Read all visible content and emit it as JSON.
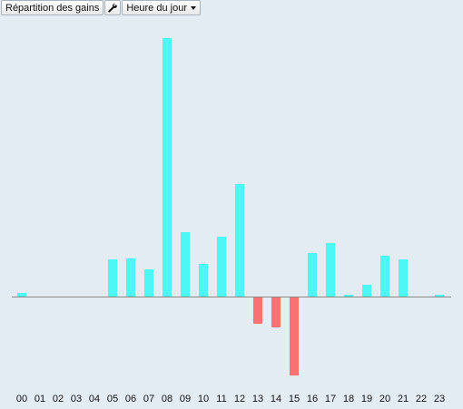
{
  "toolbar": {
    "title_label": "Répartition des gains",
    "tool_icon": "wrench-icon",
    "period_select": "Heure du jour"
  },
  "colors": {
    "positive": "#4ff6f6",
    "negative": "#f87272",
    "baseline": "#888888",
    "background": "#e3ecf3"
  },
  "chart_data": {
    "type": "bar",
    "title": "",
    "xlabel": "",
    "ylabel": "",
    "categories": [
      "00",
      "01",
      "02",
      "03",
      "04",
      "05",
      "06",
      "07",
      "08",
      "09",
      "10",
      "11",
      "12",
      "13",
      "14",
      "15",
      "16",
      "17",
      "18",
      "19",
      "20",
      "21",
      "22",
      "23"
    ],
    "values": [
      0.4,
      0,
      0,
      0,
      0,
      4.1,
      4.2,
      3.0,
      28.5,
      7.1,
      3.6,
      6.6,
      12.4,
      -3.0,
      -3.4,
      -8.7,
      4.8,
      5.9,
      0.2,
      1.3,
      4.5,
      4.1,
      0,
      0.2
    ],
    "ylim": [
      -10,
      30
    ],
    "grid": false,
    "legend": "none"
  }
}
